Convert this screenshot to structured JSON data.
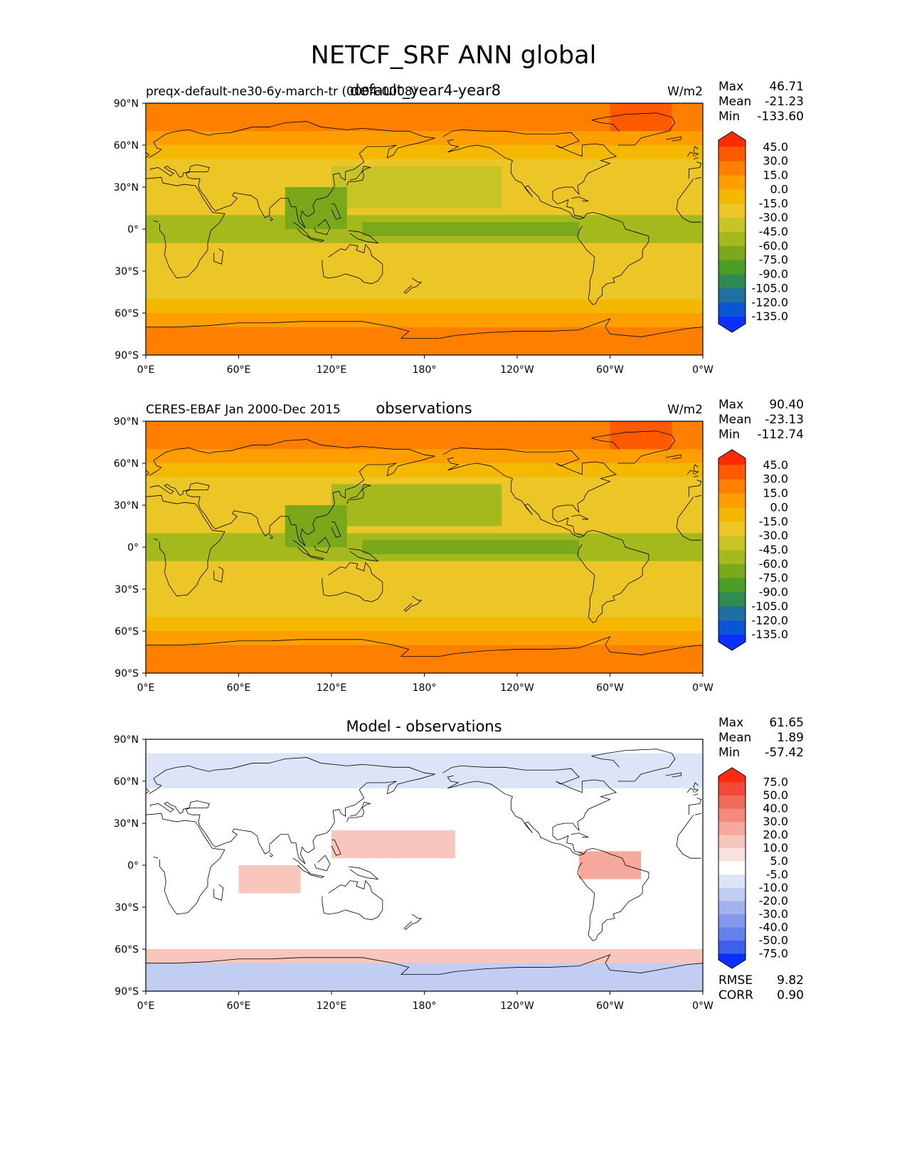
{
  "title": "NETCF_SRF ANN global",
  "colors": {
    "land": "none",
    "coast": "#000000"
  },
  "tick_labels": {
    "lat": [
      "90°N",
      "60°N",
      "30°N",
      "0°",
      "30°S",
      "60°S",
      "90°S"
    ],
    "lon": [
      "0°E",
      "60°E",
      "120°E",
      "180°",
      "120°W",
      "60°W",
      "0°W"
    ]
  },
  "panels": [
    {
      "left_label": "preqx-default-ne30-6y-march-tr (0004-0008)",
      "center_label": "default_year4-year8",
      "units": "W/m2",
      "stats": {
        "max_label": "Max",
        "max": "46.71",
        "mean_label": "Mean",
        "mean": "-21.23",
        "min_label": "Min",
        "min": "-133.60"
      },
      "colorbar": {
        "labels": [
          "45.0",
          "30.0",
          "15.0",
          "0.0",
          "-15.0",
          "-30.0",
          "-45.0",
          "-60.0",
          "-75.0",
          "-90.0",
          "-105.0",
          "-120.0",
          "-135.0"
        ],
        "colors": [
          "#ff2a00",
          "#ff5a00",
          "#ff7f00",
          "#ff9e00",
          "#f5b800",
          "#ecc627",
          "#c9c326",
          "#a5b91c",
          "#7aa81a",
          "#4c9d26",
          "#2f8a54",
          "#1f6fa0",
          "#0a54d6",
          "#0a2fff"
        ]
      }
    },
    {
      "left_label": "CERES-EBAF Jan 2000-Dec 2015",
      "center_label": "observations",
      "units": "W/m2",
      "stats": {
        "max_label": "Max",
        "max": "90.40",
        "mean_label": "Mean",
        "mean": "-23.13",
        "min_label": "Min",
        "min": "-112.74"
      },
      "colorbar": {
        "labels": [
          "45.0",
          "30.0",
          "15.0",
          "0.0",
          "-15.0",
          "-30.0",
          "-45.0",
          "-60.0",
          "-75.0",
          "-90.0",
          "-105.0",
          "-120.0",
          "-135.0"
        ],
        "colors": [
          "#ff2a00",
          "#ff5a00",
          "#ff7f00",
          "#ff9e00",
          "#f5b800",
          "#ecc627",
          "#c9c326",
          "#a5b91c",
          "#7aa81a",
          "#4c9d26",
          "#2f8a54",
          "#1f6fa0",
          "#0a54d6",
          "#0a2fff"
        ]
      }
    },
    {
      "left_label": "",
      "center_label": "Model - observations",
      "units": "",
      "stats": {
        "max_label": "Max",
        "max": "61.65",
        "mean_label": "Mean",
        "mean": "1.89",
        "min_label": "Min",
        "min": "-57.42"
      },
      "extra_stats": {
        "rmse_label": "RMSE",
        "rmse": "9.82",
        "corr_label": "CORR",
        "corr": "0.90"
      },
      "colorbar": {
        "labels": [
          "75.0",
          "50.0",
          "40.0",
          "30.0",
          "20.0",
          "10.0",
          "5.0",
          "-5.0",
          "-10.0",
          "-20.0",
          "-30.0",
          "-40.0",
          "-50.0",
          "-75.0"
        ],
        "colors": [
          "#ff2a10",
          "#f2493a",
          "#f26a5a",
          "#f48a7c",
          "#f6a89c",
          "#f8c6bc",
          "#fae2dc",
          "#ffffff",
          "#dde4f8",
          "#c2cdf4",
          "#a3b3f0",
          "#8399ec",
          "#6480ea",
          "#3d5fee",
          "#0a2fff"
        ]
      }
    }
  ]
}
